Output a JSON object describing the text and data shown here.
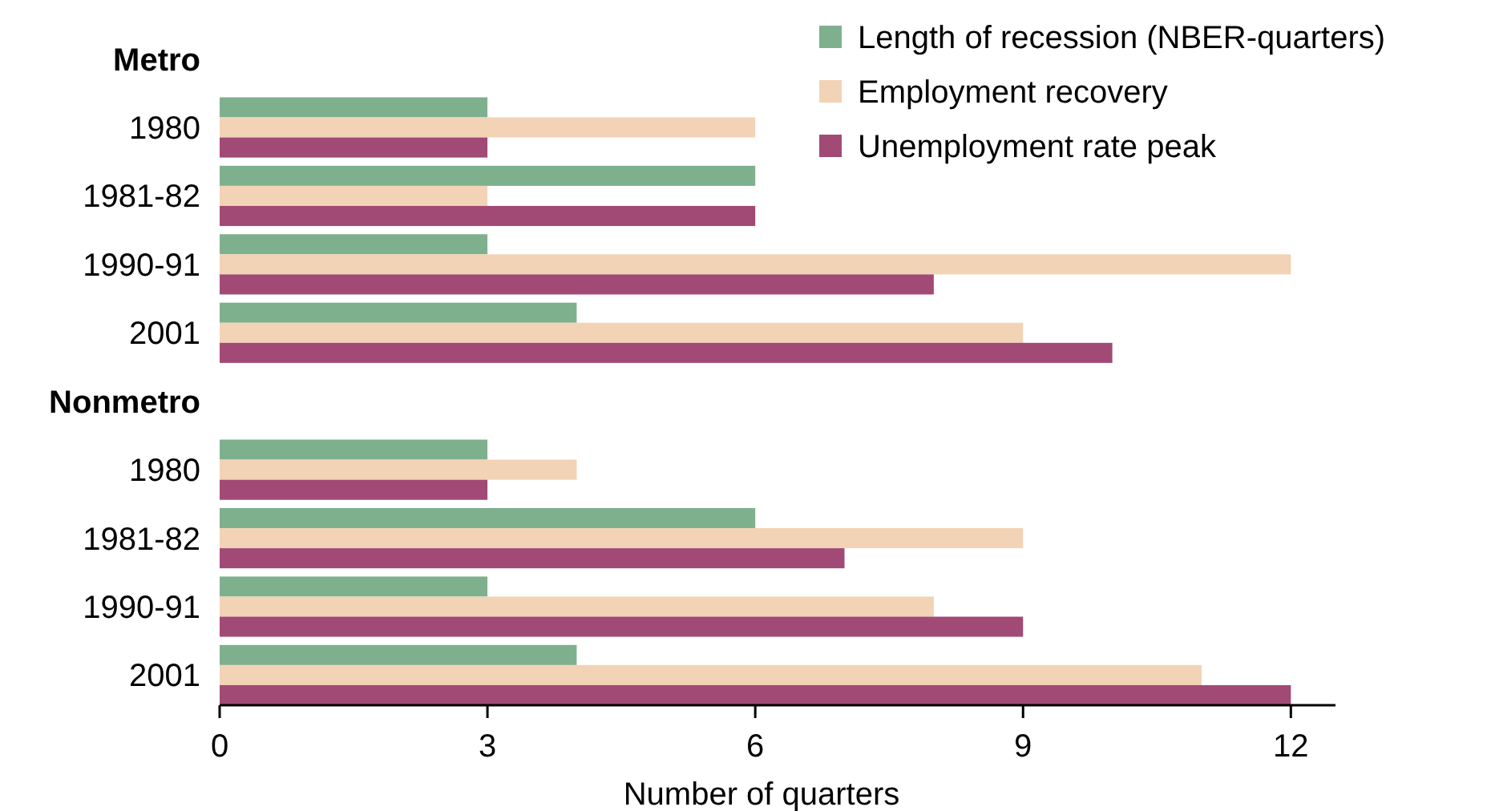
{
  "chart_data": {
    "type": "bar",
    "orientation": "horizontal",
    "xlabel": "Number of quarters",
    "categories": [
      "Metro",
      "1980",
      "1981-82",
      "1990-91",
      "2001",
      "Nonmetro",
      "1980",
      "1981-82",
      "1990-91",
      "2001"
    ],
    "series": [
      {
        "name": "Length of recession (NBER-quarters)",
        "color": "#7fb08e",
        "values": [
          null,
          3,
          6,
          3,
          4,
          null,
          3,
          6,
          3,
          4
        ]
      },
      {
        "name": "Employment recovery",
        "color": "#f2d3b5",
        "values": [
          null,
          6,
          3,
          12,
          9,
          null,
          4,
          9,
          8,
          11
        ]
      },
      {
        "name": "Unemployment rate peak",
        "color": "#a14a75",
        "values": [
          null,
          3,
          6,
          8,
          10,
          null,
          3,
          7,
          9,
          12
        ]
      }
    ],
    "xlim": [
      0,
      12.5
    ],
    "xticks": [
      0,
      3,
      6,
      9,
      12
    ],
    "grid": false,
    "legend": "top right"
  }
}
